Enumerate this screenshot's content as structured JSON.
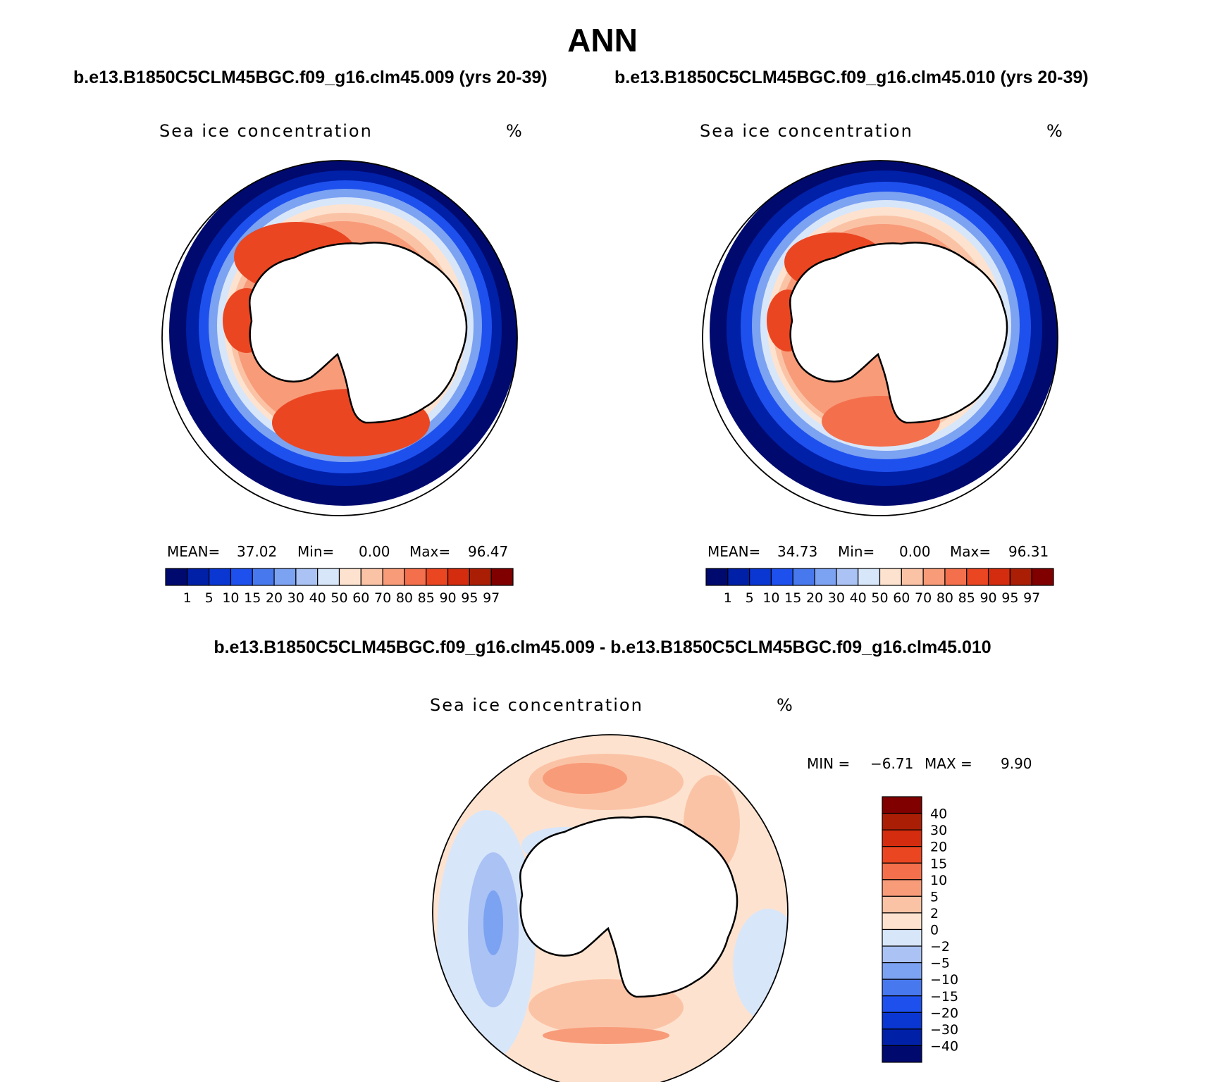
{
  "title": "ANN",
  "case1_title": "b.e13.B1850C5CLM45BGC.f09_g16.clm45.009 (yrs 20-39)",
  "case2_title": "b.e13.B1850C5CLM45BGC.f09_g16.clm45.010 (yrs 20-39)",
  "diff_title": "b.e13.B1850C5CLM45BGC.f09_g16.clm45.009 - b.e13.B1850C5CLM45BGC.f09_g16.clm45.010",
  "panels": [
    {
      "variable": "Sea ice concentration",
      "units": "%",
      "mean_label": "MEAN=",
      "mean": "37.02",
      "min_label": "Min=",
      "min": "0.00",
      "max_label": "Max=",
      "max": "96.47"
    },
    {
      "variable": "Sea ice concentration",
      "units": "%",
      "mean_label": "MEAN=",
      "mean": "34.73",
      "min_label": "Min=",
      "min": "0.00",
      "max_label": "Max=",
      "max": "96.31"
    },
    {
      "variable": "Sea ice concentration",
      "units": "%",
      "min_label": "MIN =",
      "min": "−6.71",
      "max_label": "MAX =",
      "max": "9.90"
    }
  ],
  "colorbar_abs": {
    "levels": [
      "1",
      "5",
      "10",
      "15",
      "20",
      "30",
      "40",
      "50",
      "60",
      "70",
      "80",
      "85",
      "90",
      "95",
      "97"
    ],
    "colors": [
      "#000a6e",
      "#0020a8",
      "#0a37d2",
      "#1e50ee",
      "#4878ee",
      "#7ca2f2",
      "#aac2f4",
      "#d8e6fa",
      "#fde3cf",
      "#fbc3a6",
      "#f89b79",
      "#f4704c",
      "#ea4622",
      "#d42c0e",
      "#aa1e06",
      "#800000"
    ]
  },
  "colorbar_diff": {
    "levels": [
      "40",
      "30",
      "20",
      "15",
      "10",
      "5",
      "2",
      "0",
      "−2",
      "−5",
      "−10",
      "−15",
      "−20",
      "−30",
      "−40"
    ],
    "colors": [
      "#800000",
      "#aa1e06",
      "#d42c0e",
      "#ea4622",
      "#f4704c",
      "#f89b79",
      "#fbc3a6",
      "#fde3cf",
      "#d8e6fa",
      "#aac2f4",
      "#7ca2f2",
      "#4878ee",
      "#1e50ee",
      "#0a37d2",
      "#0020a8",
      "#000a6e"
    ]
  }
}
